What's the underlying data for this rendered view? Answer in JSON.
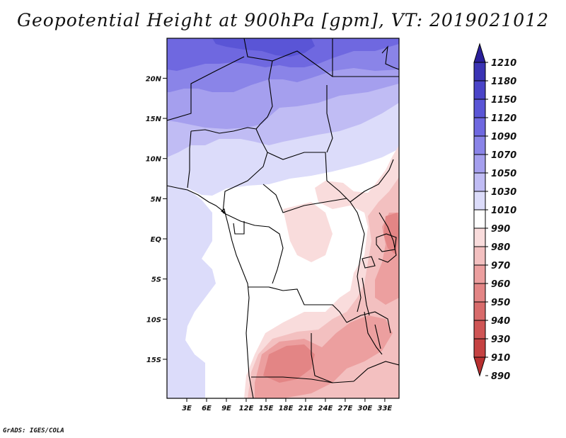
{
  "title": "Geopotential Height at 900hPa [gpm], VT: 2019021012",
  "credit": "GrADS: IGES/COLA",
  "map": {
    "lat_labels": [
      {
        "deg": 20,
        "text": "20N"
      },
      {
        "deg": 15,
        "text": "15N"
      },
      {
        "deg": 10,
        "text": "10N"
      },
      {
        "deg": 5,
        "text": "5N"
      },
      {
        "deg": 0,
        "text": "EQ"
      },
      {
        "deg": -5,
        "text": "5S"
      },
      {
        "deg": -10,
        "text": "10S"
      },
      {
        "deg": -15,
        "text": "15S"
      }
    ],
    "lon_labels": [
      {
        "deg": 3,
        "text": "3E"
      },
      {
        "deg": 6,
        "text": "6E"
      },
      {
        "deg": 9,
        "text": "9E"
      },
      {
        "deg": 12,
        "text": "12E"
      },
      {
        "deg": 15,
        "text": "15E"
      },
      {
        "deg": 18,
        "text": "18E"
      },
      {
        "deg": 21,
        "text": "21E"
      },
      {
        "deg": 24,
        "text": "24E"
      },
      {
        "deg": 27,
        "text": "27E"
      },
      {
        "deg": 30,
        "text": "30E"
      },
      {
        "deg": 33,
        "text": "33E"
      }
    ]
  },
  "colorbar": {
    "levels": [
      "1210",
      "1180",
      "1150",
      "1120",
      "1090",
      "1070",
      "1050",
      "1030",
      "1010",
      "990",
      "980",
      "970",
      "960",
      "950",
      "940",
      "930",
      "910",
      "890"
    ],
    "colors": [
      "#2a1f9a",
      "#3a33b4",
      "#4a44c8",
      "#5a55d6",
      "#6f68e0",
      "#8a84e8",
      "#a59fee",
      "#c0bcf4",
      "#dcdcfa",
      "#ffffff",
      "#f9dcdc",
      "#f3c0c0",
      "#ec9f9f",
      "#e38585",
      "#d86b6b",
      "#cf5555",
      "#c54242",
      "#b83030"
    ]
  }
}
